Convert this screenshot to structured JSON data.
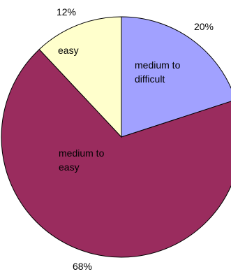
{
  "chart_data": {
    "type": "pie",
    "title": "",
    "legend": "none",
    "slices": [
      {
        "percent_label": "20%",
        "value": 20,
        "inside_label": [
          "medium to",
          "difficult"
        ],
        "color": "#A1A1FF"
      },
      {
        "percent_label": "68%",
        "value": 68,
        "inside_label": [
          "medium to",
          "easy"
        ],
        "color": "#9A2C5E"
      },
      {
        "percent_label": "12%",
        "value": 12,
        "inside_label": [
          "easy"
        ],
        "color": "#FFFFCC"
      }
    ]
  }
}
